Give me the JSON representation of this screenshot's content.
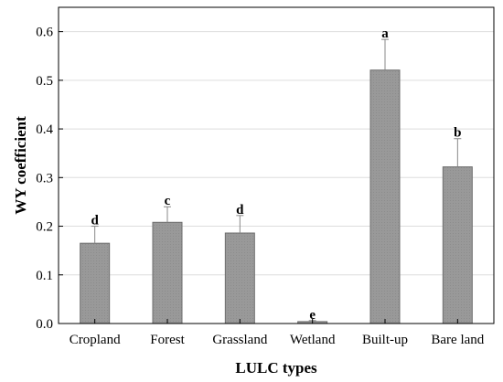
{
  "chart_data": {
    "type": "bar",
    "title": "",
    "xlabel": "LULC types",
    "ylabel": "WY coefficient",
    "categories": [
      "Cropland",
      "Forest",
      "Grassland",
      "Wetland",
      "Built-up",
      "Bare land"
    ],
    "values": [
      0.165,
      0.208,
      0.186,
      0.004,
      0.521,
      0.322
    ],
    "error_upper": [
      0.2,
      0.24,
      0.222,
      0.006,
      0.584,
      0.38
    ],
    "significance_letters": [
      "d",
      "c",
      "d",
      "e",
      "a",
      "b"
    ],
    "ylim": [
      0,
      0.65
    ],
    "yticks": [
      0.0,
      0.1,
      0.2,
      0.3,
      0.4,
      0.5,
      0.6
    ],
    "ytick_labels": [
      "0.0",
      "0.1",
      "0.2",
      "0.3",
      "0.4",
      "0.5",
      "0.6"
    ],
    "grid": true,
    "legend": "none",
    "colors": {
      "bar_fill": "#999999",
      "bar_stroke": "#6e6e6e",
      "error_bar": "#888888",
      "grid": "#dddddd",
      "axis": "#000000"
    }
  }
}
